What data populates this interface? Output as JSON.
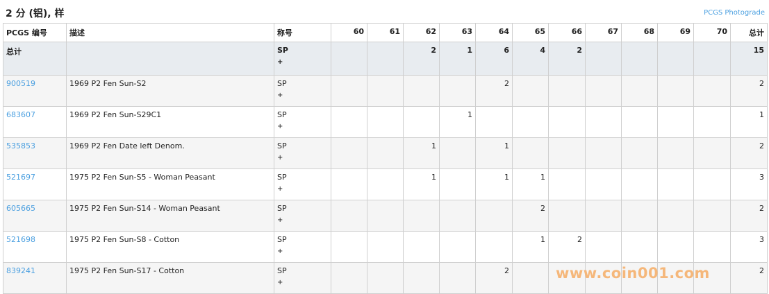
{
  "title": "2 分 (铝), 样",
  "photograde_link": "PCGS Photograde",
  "columns": {
    "id": "PCGS 编号",
    "desc": "描述",
    "designation": "称号",
    "grades": [
      "60",
      "61",
      "62",
      "63",
      "64",
      "65",
      "66",
      "67",
      "68",
      "69",
      "70"
    ],
    "total": "总计"
  },
  "total_row": {
    "label": "总计",
    "designation": "SP",
    "designation_suffix": "+",
    "counts": [
      "",
      "",
      "2",
      "1",
      "6",
      "4",
      "2",
      "",
      "",
      "",
      ""
    ],
    "total": "15"
  },
  "rows": [
    {
      "id": "900519",
      "desc": "1969 P2 Fen Sun-S2",
      "designation": "SP",
      "suffix": "+",
      "counts": [
        "",
        "",
        "",
        "",
        "2",
        "",
        "",
        "",
        "",
        "",
        ""
      ],
      "total": "2"
    },
    {
      "id": "683607",
      "desc": "1969 P2 Fen Sun-S29C1",
      "designation": "SP",
      "suffix": "+",
      "counts": [
        "",
        "",
        "",
        "1",
        "",
        "",
        "",
        "",
        "",
        "",
        ""
      ],
      "total": "1"
    },
    {
      "id": "535853",
      "desc": "1969 P2 Fen Date left Denom.",
      "designation": "SP",
      "suffix": "+",
      "counts": [
        "",
        "",
        "1",
        "",
        "1",
        "",
        "",
        "",
        "",
        "",
        ""
      ],
      "total": "2"
    },
    {
      "id": "521697",
      "desc": "1975 P2 Fen Sun-S5 - Woman Peasant",
      "designation": "SP",
      "suffix": "+",
      "counts": [
        "",
        "",
        "1",
        "",
        "1",
        "1",
        "",
        "",
        "",
        "",
        ""
      ],
      "total": "3"
    },
    {
      "id": "605665",
      "desc": "1975 P2 Fen Sun-S14 - Woman Peasant",
      "designation": "SP",
      "suffix": "+",
      "counts": [
        "",
        "",
        "",
        "",
        "",
        "2",
        "",
        "",
        "",
        "",
        ""
      ],
      "total": "2"
    },
    {
      "id": "521698",
      "desc": "1975 P2 Fen Sun-S8 - Cotton",
      "designation": "SP",
      "suffix": "+",
      "counts": [
        "",
        "",
        "",
        "",
        "",
        "1",
        "2",
        "",
        "",
        "",
        ""
      ],
      "total": "3"
    },
    {
      "id": "839241",
      "desc": "1975 P2 Fen Sun-S17 - Cotton",
      "designation": "SP",
      "suffix": "+",
      "counts": [
        "",
        "",
        "",
        "",
        "2",
        "",
        "",
        "",
        "",
        "",
        ""
      ],
      "total": "2"
    }
  ],
  "watermark": "www.coin001.com"
}
